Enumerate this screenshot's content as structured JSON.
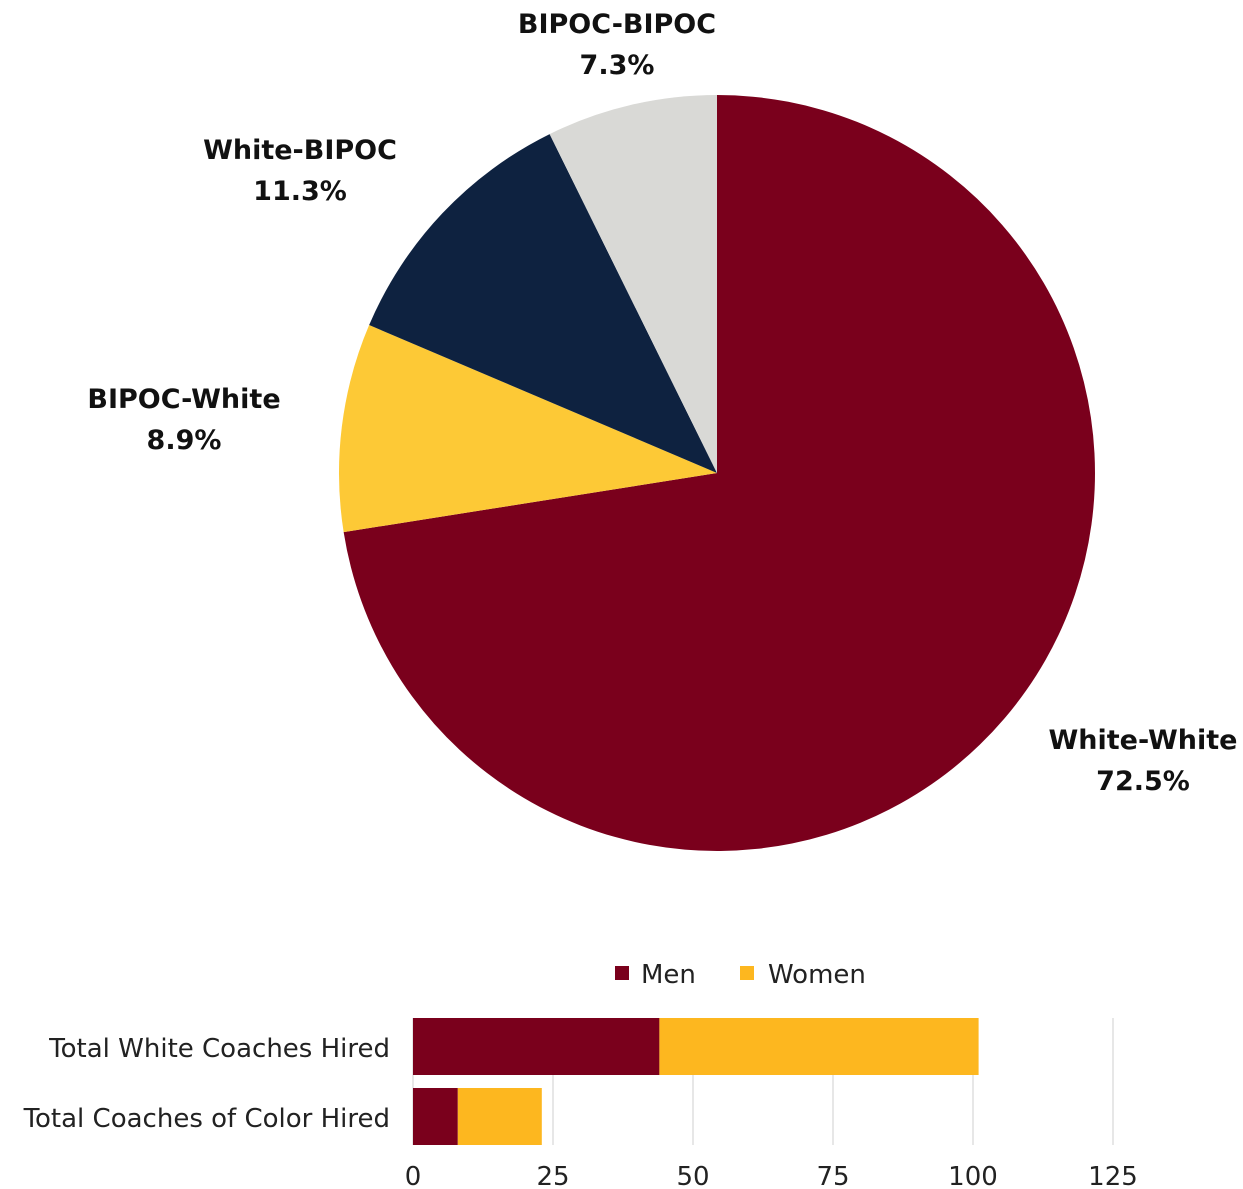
{
  "chart_data": [
    {
      "type": "pie",
      "slices": [
        {
          "label": "White-White",
          "value": 72.5,
          "value_text": "72.5%",
          "color": "#7a001c"
        },
        {
          "label": "BIPOC-White",
          "value": 8.9,
          "value_text": "8.9%",
          "color": "#fdc936"
        },
        {
          "label": "White-BIPOC",
          "value": 11.3,
          "value_text": "11.3%",
          "color": "#0e2240"
        },
        {
          "label": "BIPOC-BIPOC",
          "value": 7.3,
          "value_text": "7.3%",
          "color": "#d9d9d6"
        }
      ]
    },
    {
      "type": "bar",
      "orientation": "horizontal",
      "stacked": true,
      "categories": [
        "Total White Coaches Hired",
        "Total Coaches of Color Hired"
      ],
      "series": [
        {
          "name": "Men",
          "values": [
            44,
            8
          ],
          "color": "#7a001c"
        },
        {
          "name": "Women",
          "values": [
            57,
            15
          ],
          "color": "#fdb71f"
        }
      ],
      "xlim": [
        0,
        125
      ],
      "xticks": [
        "0",
        "25",
        "50",
        "75",
        "100",
        "125"
      ],
      "grid": true,
      "legend_position": "top"
    }
  ]
}
